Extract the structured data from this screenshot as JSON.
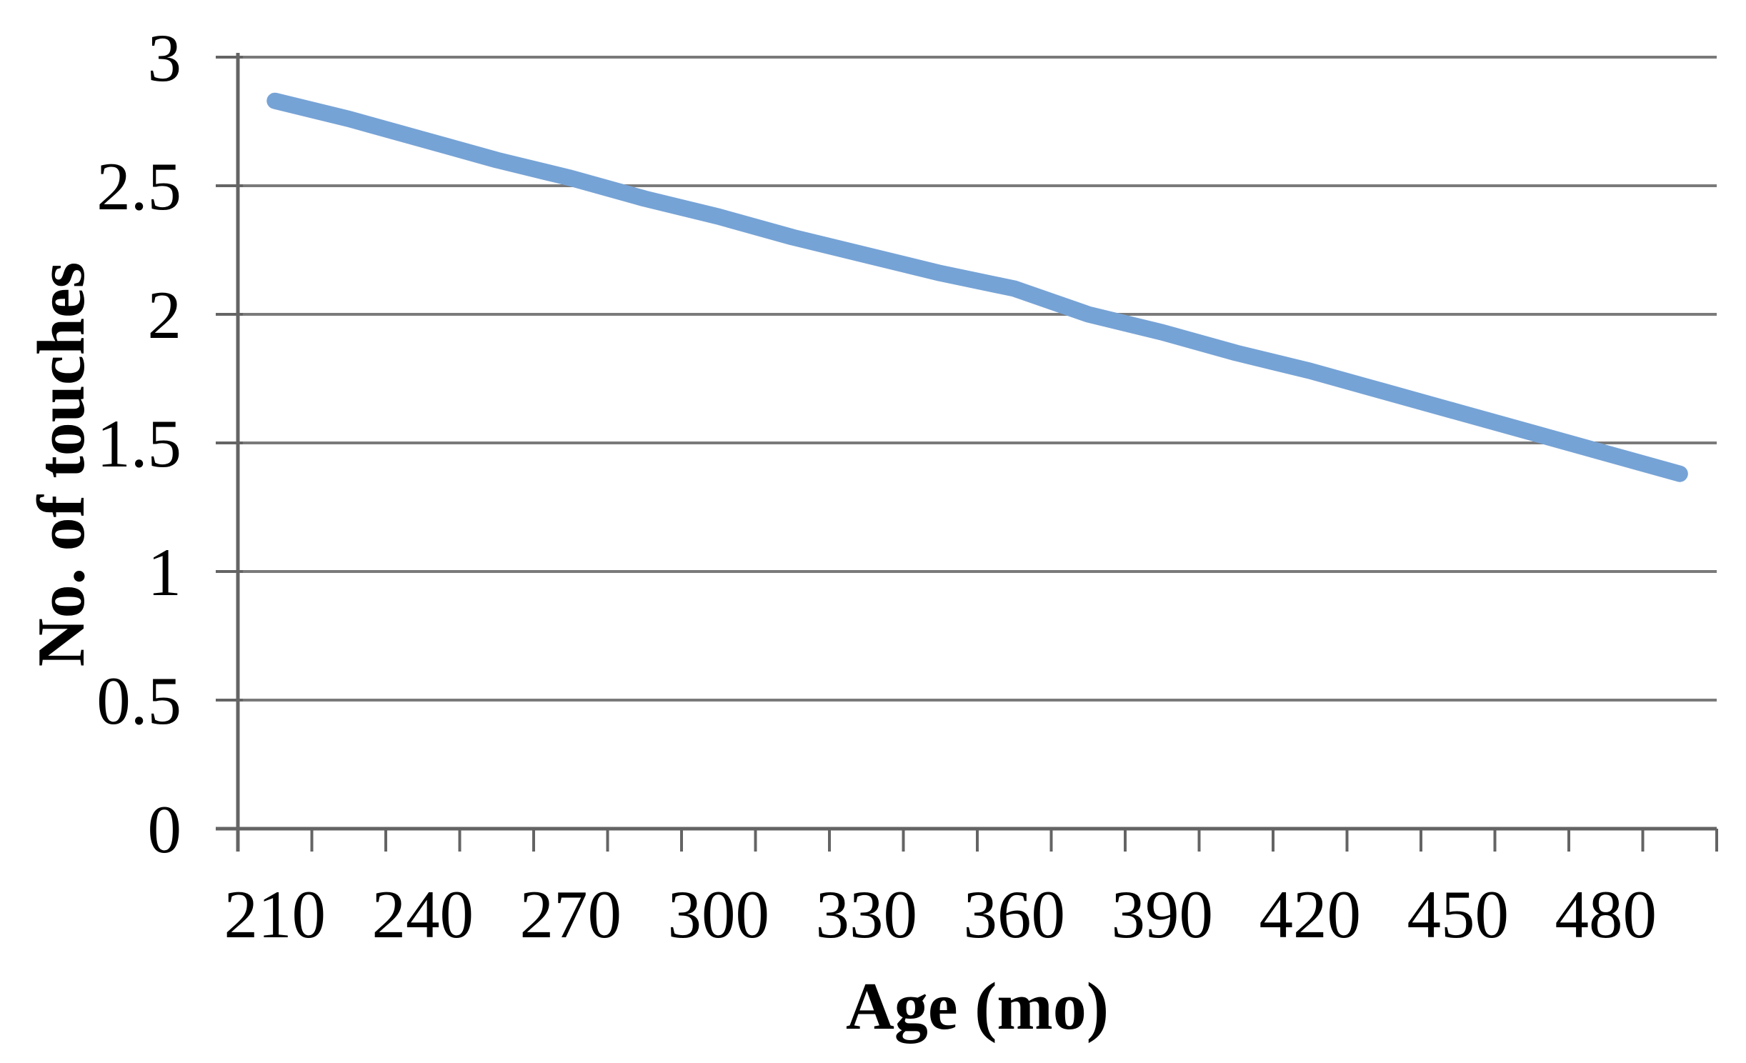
{
  "page": {
    "background": "#ffffff"
  },
  "chart": {
    "y_axis_title": "No. of touches",
    "x_axis_title": "Age (mo)"
  },
  "chart_data": {
    "type": "line",
    "title": "",
    "xlabel": "Age (mo)",
    "ylabel": "No. of touches",
    "xlim": [
      202.5,
      502.5
    ],
    "ylim": [
      0,
      3
    ],
    "grid": "horizontal-only",
    "legend": "none",
    "y_ticks": [
      0,
      0.5,
      1,
      1.5,
      2,
      2.5,
      3
    ],
    "y_tick_labels": [
      "0",
      "0.5",
      "1",
      "1.5",
      "2",
      "2.5",
      "3"
    ],
    "x_ticks": [
      210,
      240,
      270,
      300,
      330,
      360,
      390,
      420,
      450,
      480
    ],
    "x_tick_labels": [
      "210",
      "240",
      "270",
      "300",
      "330",
      "360",
      "390",
      "420",
      "450",
      "480"
    ],
    "x_minor_tick_interval": 15,
    "series": [
      {
        "name": "No. of touches",
        "color": "#76a3d6",
        "stroke_width": 23,
        "x": [
          210,
          225,
          240,
          255,
          270,
          285,
          300,
          315,
          330,
          345,
          360,
          375,
          390,
          405,
          420,
          435,
          450,
          465,
          480,
          495
        ],
        "values": [
          2.83,
          2.76,
          2.68,
          2.6,
          2.53,
          2.45,
          2.38,
          2.3,
          2.23,
          2.16,
          2.1,
          2.0,
          1.93,
          1.85,
          1.78,
          1.7,
          1.62,
          1.54,
          1.46,
          1.38
        ]
      }
    ],
    "colors": {
      "gridline": "#7a7a7a",
      "axis": "#646464",
      "text": "#000000"
    }
  }
}
